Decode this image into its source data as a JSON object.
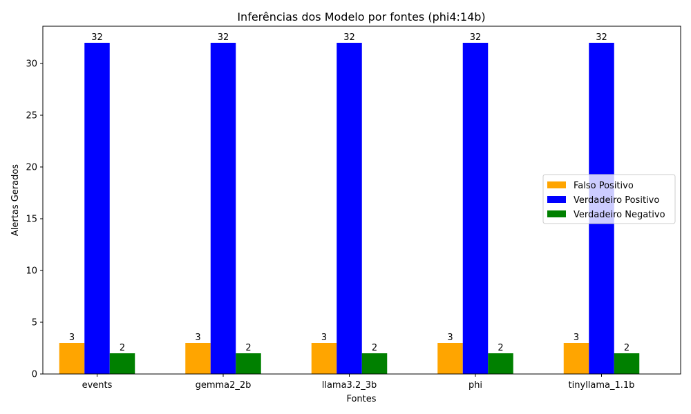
{
  "chart_data": {
    "type": "bar",
    "title": "Inferências dos Modelo por fontes (phi4:14b)",
    "xlabel": "Fontes",
    "ylabel": "Alertas Gerados",
    "categories": [
      "events",
      "gemma2_2b",
      "llama3.2_3b",
      "phi",
      "tinyllama_1.1b"
    ],
    "series": [
      {
        "name": "Falso Positivo",
        "values": [
          3,
          3,
          3,
          3,
          3
        ],
        "color": "#ffa500"
      },
      {
        "name": "Verdadeiro Positivo",
        "values": [
          32,
          32,
          32,
          32,
          32
        ],
        "color": "#0000ff"
      },
      {
        "name": "Verdadeiro Negativo",
        "values": [
          2,
          2,
          2,
          2,
          2
        ],
        "color": "#008000"
      }
    ],
    "ylim": [
      0,
      33.6
    ],
    "yticks": [
      0,
      5,
      10,
      15,
      20,
      25,
      30
    ],
    "grid": false,
    "legend_position": "center-right"
  }
}
